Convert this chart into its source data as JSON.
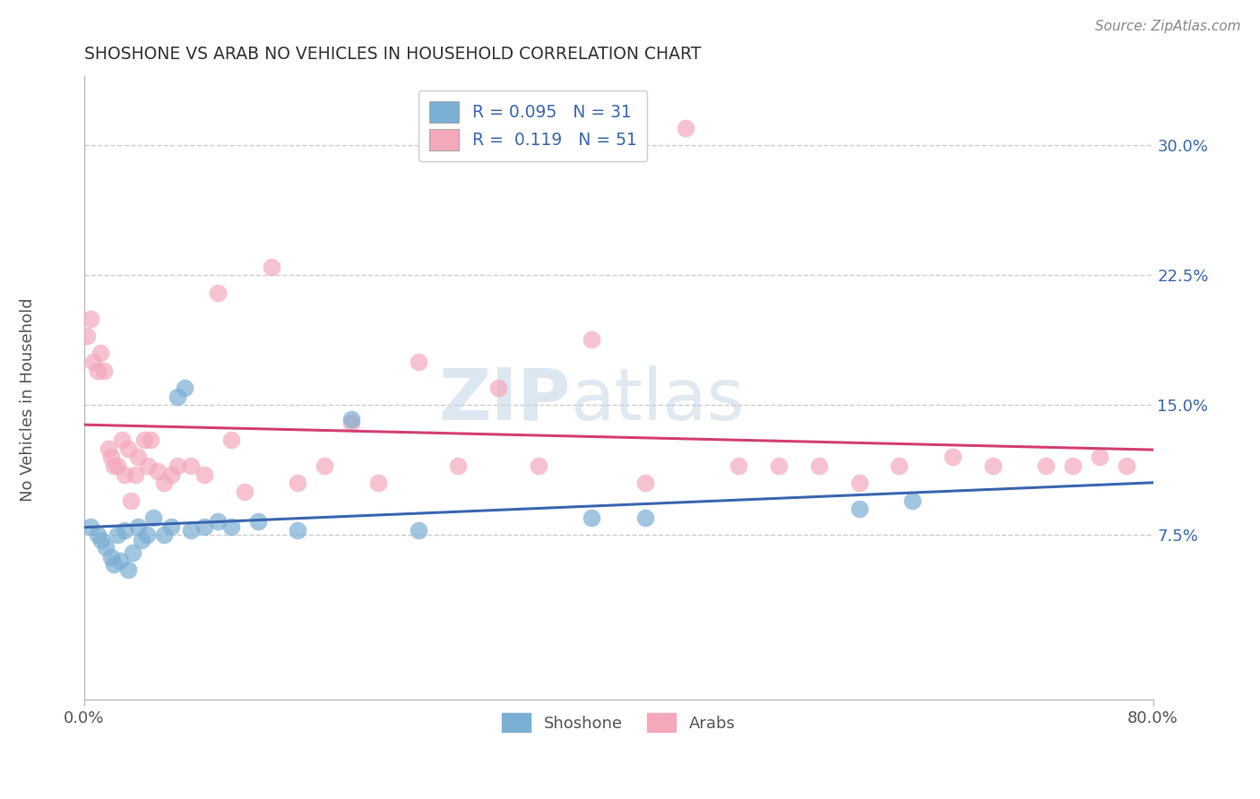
{
  "title": "SHOSHONE VS ARAB NO VEHICLES IN HOUSEHOLD CORRELATION CHART",
  "source_text": "Source: ZipAtlas.com",
  "ylabel": "No Vehicles in Household",
  "xlim": [
    0.0,
    0.8
  ],
  "ylim": [
    -0.02,
    0.34
  ],
  "yticks": [
    0.075,
    0.15,
    0.225,
    0.3
  ],
  "yticklabels": [
    "7.5%",
    "15.0%",
    "22.5%",
    "30.0%"
  ],
  "shoshone_color": "#7bafd4",
  "arab_color": "#f4a9bb",
  "shoshone_line_color": "#3b67b0",
  "arab_line_color": "#d44070",
  "legend_R_shoshone": "0.095",
  "legend_N_shoshone": "31",
  "legend_R_arab": "0.119",
  "legend_N_arab": "51",
  "shoshone_x": [
    0.005,
    0.01,
    0.013,
    0.016,
    0.02,
    0.022,
    0.025,
    0.027,
    0.03,
    0.033,
    0.036,
    0.04,
    0.043,
    0.047,
    0.052,
    0.06,
    0.065,
    0.07,
    0.075,
    0.08,
    0.09,
    0.1,
    0.11,
    0.13,
    0.16,
    0.2,
    0.25,
    0.38,
    0.42,
    0.58,
    0.62
  ],
  "shoshone_y": [
    0.08,
    0.075,
    0.072,
    0.068,
    0.062,
    0.058,
    0.075,
    0.06,
    0.078,
    0.055,
    0.065,
    0.08,
    0.072,
    0.075,
    0.085,
    0.075,
    0.08,
    0.155,
    0.16,
    0.078,
    0.08,
    0.083,
    0.08,
    0.083,
    0.078,
    0.142,
    0.078,
    0.085,
    0.085,
    0.09,
    0.095
  ],
  "arab_x": [
    0.002,
    0.005,
    0.007,
    0.01,
    0.012,
    0.015,
    0.018,
    0.02,
    0.022,
    0.025,
    0.028,
    0.03,
    0.033,
    0.035,
    0.038,
    0.04,
    0.045,
    0.048,
    0.05,
    0.055,
    0.06,
    0.065,
    0.07,
    0.08,
    0.09,
    0.1,
    0.11,
    0.12,
    0.14,
    0.16,
    0.18,
    0.2,
    0.22,
    0.25,
    0.28,
    0.31,
    0.34,
    0.38,
    0.42,
    0.45,
    0.49,
    0.52,
    0.55,
    0.58,
    0.61,
    0.65,
    0.68,
    0.72,
    0.74,
    0.76,
    0.78
  ],
  "arab_y": [
    0.19,
    0.2,
    0.175,
    0.17,
    0.18,
    0.17,
    0.125,
    0.12,
    0.115,
    0.115,
    0.13,
    0.11,
    0.125,
    0.095,
    0.11,
    0.12,
    0.13,
    0.115,
    0.13,
    0.112,
    0.105,
    0.11,
    0.115,
    0.115,
    0.11,
    0.215,
    0.13,
    0.1,
    0.23,
    0.105,
    0.115,
    0.14,
    0.105,
    0.175,
    0.115,
    0.16,
    0.115,
    0.188,
    0.105,
    0.31,
    0.115,
    0.115,
    0.115,
    0.105,
    0.115,
    0.12,
    0.115,
    0.115,
    0.115,
    0.12,
    0.115
  ],
  "watermark_zip": "ZIP",
  "watermark_atlas": "atlas",
  "background_color": "#ffffff",
  "grid_color": "#cccccc",
  "spine_color": "#bbbbbb",
  "title_color": "#333333",
  "source_color": "#888888",
  "ylabel_color": "#555555",
  "tick_label_color": "#3b67b0"
}
